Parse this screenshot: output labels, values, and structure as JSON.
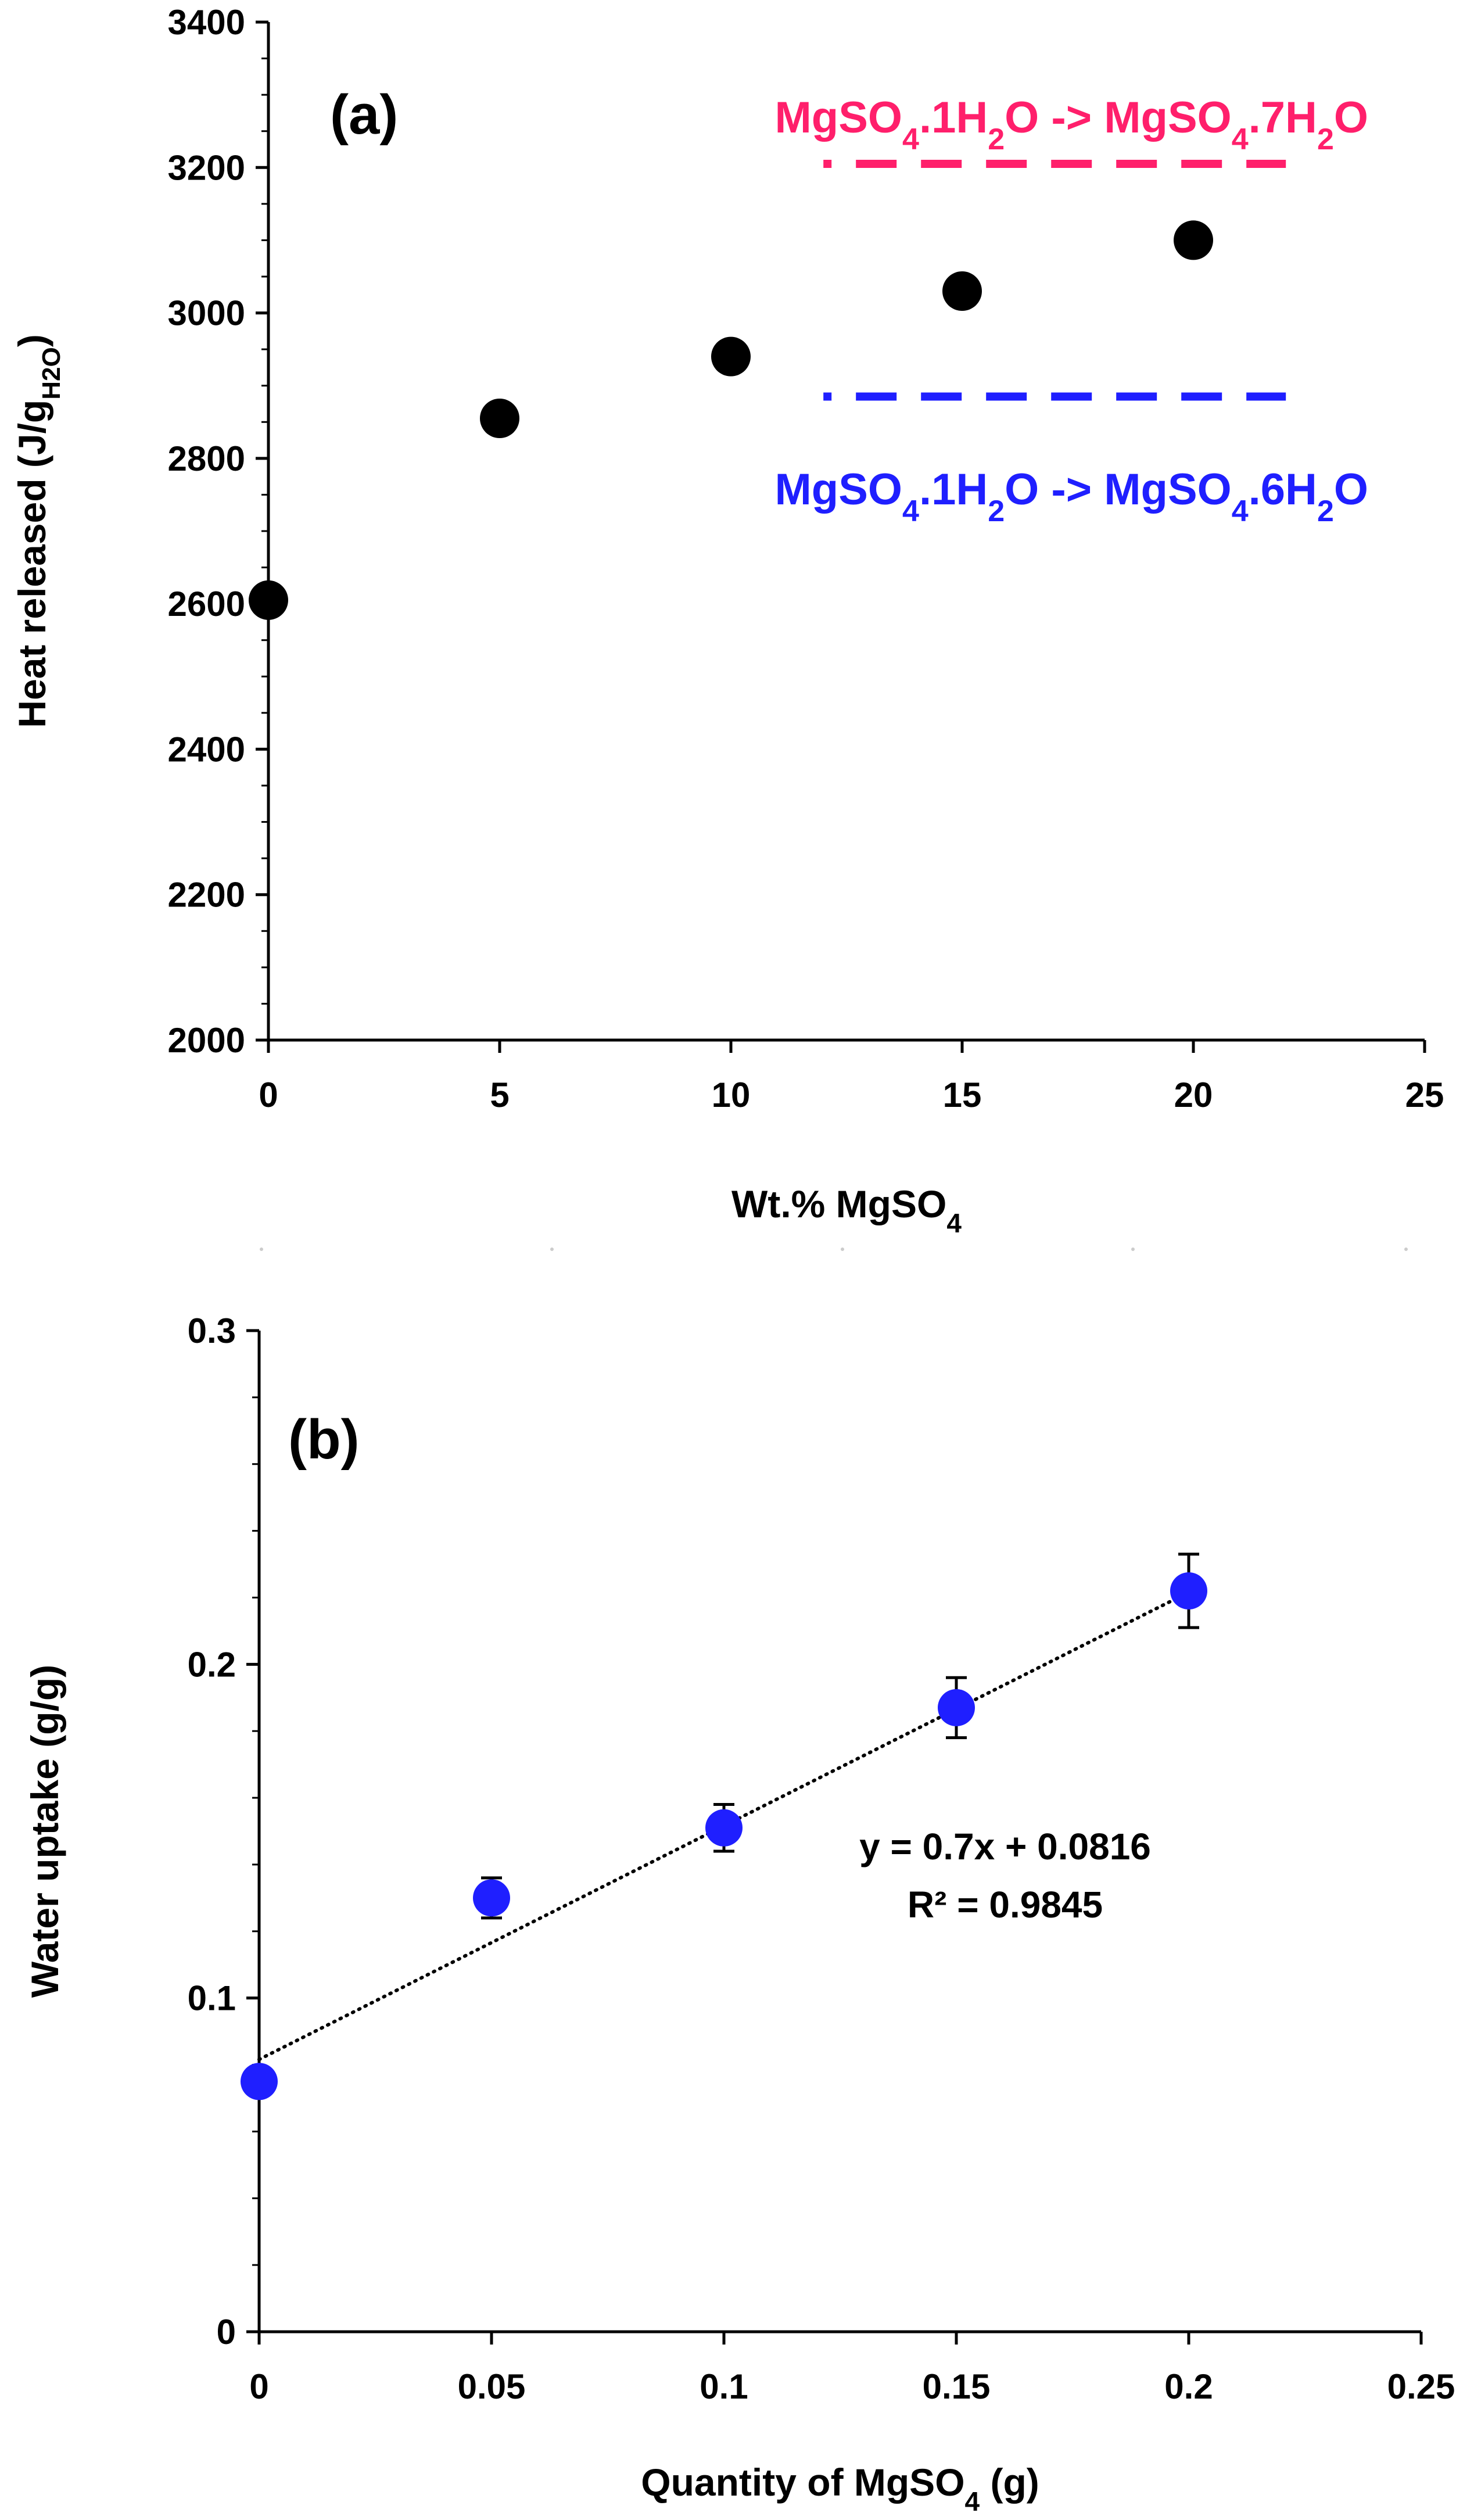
{
  "chart_data": [
    {
      "type": "scatter",
      "panel_label": "(a)",
      "title": "",
      "xlabel": {
        "main": "Wt.% MgSO",
        "sub": "4"
      },
      "ylabel": {
        "main": "Heat released (J/g",
        "sub": "H2O",
        "close": ")"
      },
      "xlim": [
        0,
        25
      ],
      "ylim": [
        2000,
        3400
      ],
      "xticks": [
        0,
        5,
        10,
        15,
        20,
        25
      ],
      "yticks": [
        2000,
        2200,
        2400,
        2600,
        2800,
        3000,
        3200,
        3400
      ],
      "grid": false,
      "marker_color": "#000000",
      "series": [
        {
          "name": "Heat released",
          "x": [
            0,
            5,
            10,
            15,
            20
          ],
          "y": [
            2605,
            2855,
            2940,
            3030,
            3100
          ]
        }
      ],
      "reference_lines": [
        {
          "name": "MgSO4.1H2O -> MgSO4.7H2O",
          "y": 3205,
          "x_from": 12,
          "x_to": 22,
          "color": "#ff1f6b",
          "style": "dashed",
          "label_parts": [
            [
              "MgSO",
              ""
            ],
            [
              "4",
              "sub"
            ],
            [
              ".1H",
              ""
            ],
            [
              "2",
              "sub"
            ],
            [
              "O -> MgSO",
              ""
            ],
            [
              "4",
              "sub"
            ],
            [
              ".7H",
              ""
            ],
            [
              "2",
              "sub"
            ],
            [
              "O",
              ""
            ]
          ]
        },
        {
          "name": "MgSO4.1H2O -> MgSO4.6H2O",
          "y": 2885,
          "x_from": 12,
          "x_to": 22,
          "color": "#1f1fff",
          "style": "dashed",
          "label_parts": [
            [
              "MgSO",
              ""
            ],
            [
              "4",
              "sub"
            ],
            [
              ".1H",
              ""
            ],
            [
              "2",
              "sub"
            ],
            [
              "O -> MgSO",
              ""
            ],
            [
              "4",
              "sub"
            ],
            [
              ".6H",
              ""
            ],
            [
              "2",
              "sub"
            ],
            [
              "O",
              ""
            ]
          ]
        }
      ]
    },
    {
      "type": "scatter",
      "panel_label": "(b)",
      "title": "",
      "xlabel": {
        "main": "Quantity of MgSO",
        "sub": "4",
        "close": " (g)"
      },
      "ylabel": {
        "main": "Water uptake (g/g)"
      },
      "xlim": [
        0,
        0.25
      ],
      "ylim": [
        0,
        0.3
      ],
      "xticks": [
        0,
        0.05,
        0.1,
        0.15,
        0.2,
        0.25
      ],
      "yticks": [
        0,
        0.1,
        0.2,
        0.3
      ],
      "grid": false,
      "marker_color": "#1f1fff",
      "series": [
        {
          "name": "Water uptake",
          "x": [
            0,
            0.05,
            0.1,
            0.15,
            0.2
          ],
          "y": [
            0.075,
            0.13,
            0.151,
            0.187,
            0.222
          ],
          "yerr": [
            0.0,
            0.006,
            0.007,
            0.009,
            0.011
          ]
        }
      ],
      "trendline": {
        "type": "linear",
        "slope": 0.7,
        "intercept": 0.0816,
        "x_from": 0,
        "x_to": 0.2,
        "style": "dotted",
        "equation": "y = 0.7x + 0.0816",
        "r2": "R² = 0.9845"
      }
    }
  ]
}
